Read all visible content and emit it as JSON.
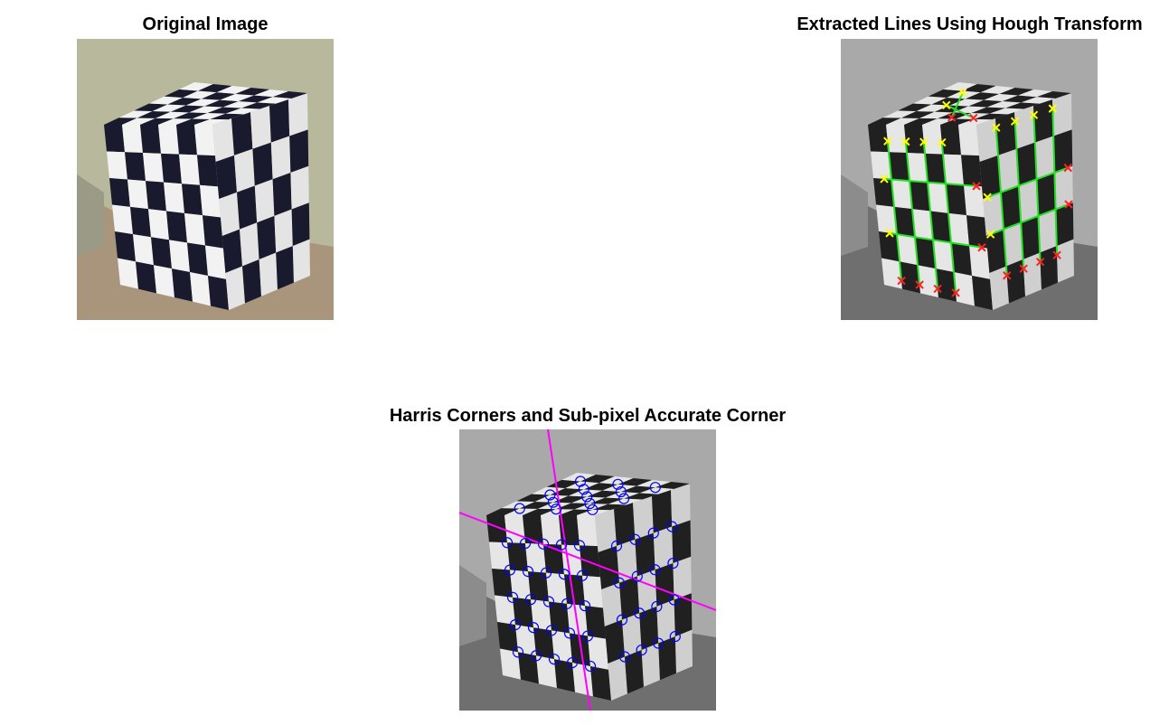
{
  "figure": {
    "panels": [
      {
        "id": "original",
        "title": "Original Image",
        "colormode": "color"
      },
      {
        "id": "hough",
        "title": "Extracted Lines Using Hough Transform",
        "colormode": "grayscale",
        "overlay": {
          "line_color": "#22e022",
          "start_marker_color": "#ffff00",
          "end_marker_color": "#ff2020",
          "marker": "x"
        }
      },
      {
        "id": "harris",
        "title": "Harris Corners and Sub-pixel Accurate Corner",
        "colormode": "grayscale",
        "overlay": {
          "corner_marker": "o",
          "corner_color": "#0000ff",
          "guide_line_color": "#ff00ff"
        }
      }
    ],
    "colors": {
      "background": "#ffffff",
      "checker_dark": "#1a1a2e",
      "checker_light": "#f2f2f2",
      "wall_color": "#b8b89c",
      "floor_color": "#a8957c"
    }
  }
}
